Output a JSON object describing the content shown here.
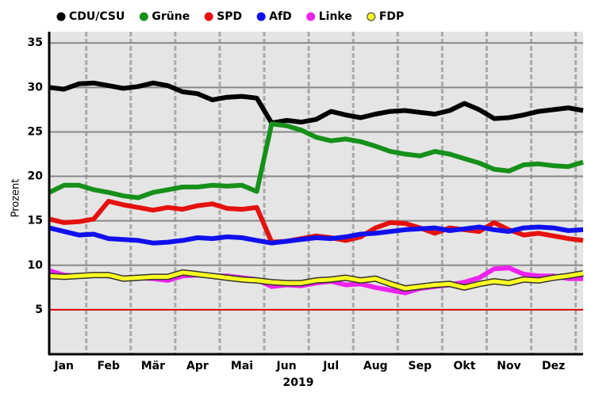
{
  "chart_data": {
    "type": "line",
    "x_label": "2019",
    "y_label": "Prozent",
    "categories": [
      null,
      "Jan",
      null,
      null,
      "Feb",
      null,
      null,
      "Mär",
      null,
      null,
      "Apr",
      null,
      null,
      "Mai",
      null,
      null,
      "Jun",
      null,
      null,
      "Jul",
      null,
      null,
      "Aug",
      null,
      null,
      "Sep",
      null,
      null,
      "Okt",
      null,
      null,
      "Nov",
      null,
      null,
      "Dez",
      null,
      null
    ],
    "series": [
      {
        "name": "CDU/CSU",
        "color": "#000000",
        "values": [
          30.0,
          29.8,
          30.4,
          30.5,
          30.2,
          29.9,
          30.1,
          30.5,
          30.2,
          29.5,
          29.3,
          28.6,
          28.9,
          29.0,
          28.8,
          26.0,
          26.3,
          26.1,
          26.4,
          27.3,
          26.9,
          26.6,
          27.0,
          27.3,
          27.4,
          27.2,
          27.0,
          27.4,
          28.2,
          27.5,
          26.5,
          26.6,
          26.9,
          27.3,
          27.5,
          27.7,
          27.4
        ]
      },
      {
        "name": "Grüne",
        "color": "#16901a",
        "values": [
          18.2,
          19.0,
          19.0,
          18.5,
          18.2,
          17.8,
          17.6,
          18.2,
          18.5,
          18.8,
          18.8,
          19.0,
          18.9,
          19.0,
          18.3,
          25.9,
          25.7,
          25.2,
          24.4,
          24.0,
          24.2,
          23.9,
          23.4,
          22.8,
          22.5,
          22.3,
          22.8,
          22.5,
          22.0,
          21.5,
          20.8,
          20.6,
          21.3,
          21.4,
          21.2,
          21.1,
          21.6
        ]
      },
      {
        "name": "SPD",
        "color": "#e4120f",
        "values": [
          15.2,
          14.8,
          14.9,
          15.2,
          17.2,
          16.8,
          16.5,
          16.2,
          16.5,
          16.3,
          16.7,
          16.9,
          16.4,
          16.3,
          16.5,
          12.6,
          12.7,
          13.0,
          13.3,
          13.1,
          12.8,
          13.2,
          14.2,
          14.8,
          14.7,
          14.2,
          13.6,
          14.2,
          14.0,
          13.8,
          14.8,
          14.0,
          13.4,
          13.6,
          13.3,
          13.0,
          12.8
        ]
      },
      {
        "name": "AfD",
        "color": "#1010ee",
        "values": [
          14.2,
          13.8,
          13.4,
          13.5,
          13.0,
          12.9,
          12.8,
          12.5,
          12.6,
          12.8,
          13.1,
          13.0,
          13.2,
          13.1,
          12.8,
          12.5,
          12.7,
          12.9,
          13.1,
          13.0,
          13.2,
          13.5,
          13.6,
          13.8,
          14.0,
          14.1,
          14.2,
          13.9,
          14.1,
          14.3,
          14.0,
          13.8,
          14.2,
          14.3,
          14.2,
          13.9,
          14.0
        ]
      },
      {
        "name": "Linke",
        "color": "#ee22ee",
        "values": [
          9.4,
          8.9,
          8.8,
          8.9,
          8.8,
          8.6,
          8.6,
          8.5,
          8.3,
          8.8,
          8.9,
          8.8,
          8.8,
          8.6,
          8.4,
          7.6,
          7.8,
          7.7,
          8.0,
          8.2,
          7.8,
          7.9,
          7.5,
          7.2,
          6.9,
          7.4,
          7.6,
          7.8,
          8.1,
          8.6,
          9.6,
          9.7,
          9.0,
          8.8,
          8.8,
          8.5,
          8.5
        ]
      },
      {
        "name": "FDP",
        "color": "#ffff22",
        "outline": "#333333",
        "values": [
          8.8,
          8.7,
          8.8,
          8.9,
          8.9,
          8.5,
          8.6,
          8.7,
          8.7,
          9.2,
          9.0,
          8.8,
          8.6,
          8.4,
          8.3,
          8.1,
          8.0,
          8.0,
          8.3,
          8.4,
          8.6,
          8.3,
          8.5,
          7.9,
          7.4,
          7.6,
          7.8,
          7.9,
          7.5,
          7.9,
          8.2,
          8.0,
          8.4,
          8.3,
          8.6,
          8.8,
          9.1
        ]
      }
    ],
    "ylim": [
      0,
      36
    ],
    "yticks": [
      5,
      10,
      15,
      20,
      25,
      30,
      35
    ],
    "grid": true,
    "reference_line": {
      "value": 5,
      "color": "#dd0000"
    },
    "legend": "top"
  }
}
